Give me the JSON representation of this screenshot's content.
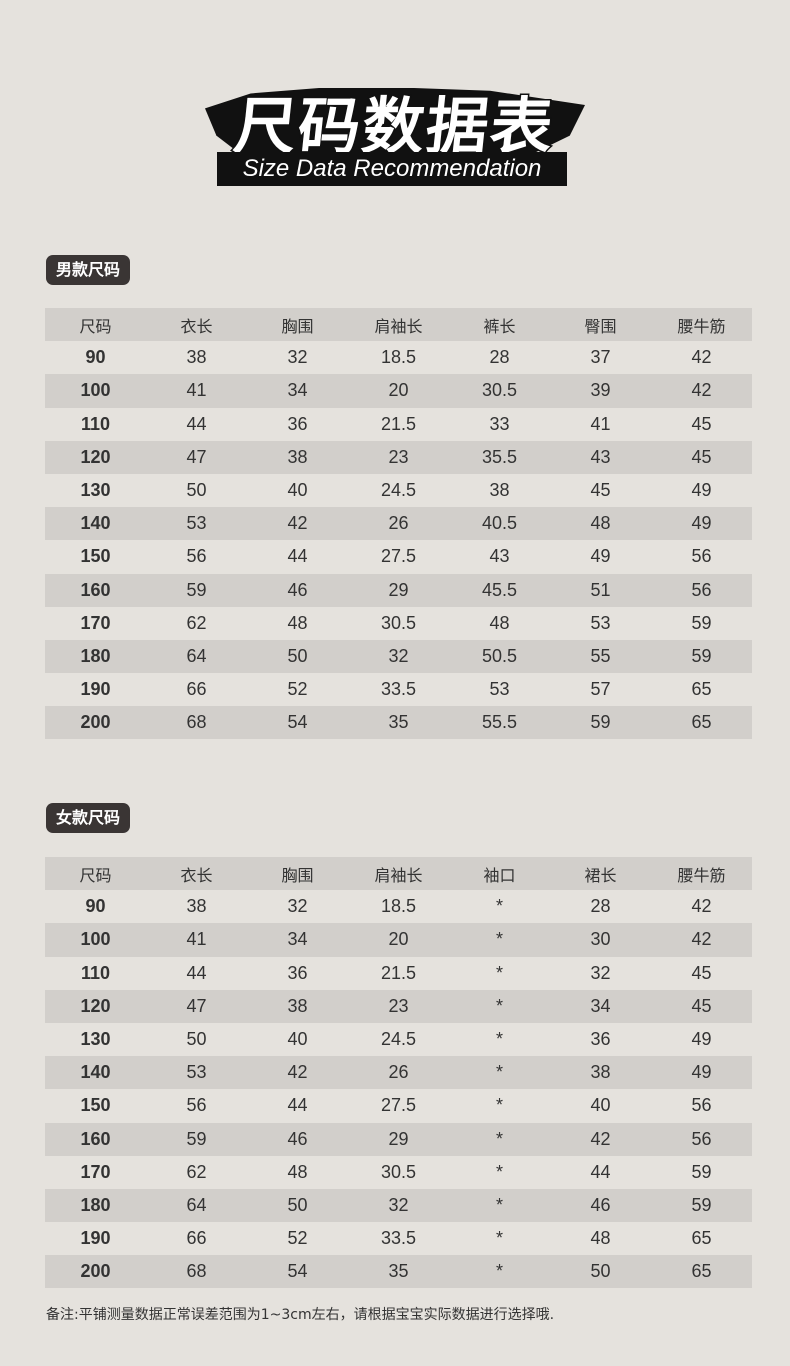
{
  "title": {
    "cn": "尺码数据表",
    "en": "Size Data Recommendation"
  },
  "men": {
    "label": "男款尺码",
    "headers": [
      "尺码",
      "衣长",
      "胸围",
      "肩袖长",
      "裤长",
      "臀围",
      "腰牛筋"
    ],
    "rows": [
      [
        "90",
        "38",
        "32",
        "18.5",
        "28",
        "37",
        "42"
      ],
      [
        "100",
        "41",
        "34",
        "20",
        "30.5",
        "39",
        "42"
      ],
      [
        "110",
        "44",
        "36",
        "21.5",
        "33",
        "41",
        "45"
      ],
      [
        "120",
        "47",
        "38",
        "23",
        "35.5",
        "43",
        "45"
      ],
      [
        "130",
        "50",
        "40",
        "24.5",
        "38",
        "45",
        "49"
      ],
      [
        "140",
        "53",
        "42",
        "26",
        "40.5",
        "48",
        "49"
      ],
      [
        "150",
        "56",
        "44",
        "27.5",
        "43",
        "49",
        "56"
      ],
      [
        "160",
        "59",
        "46",
        "29",
        "45.5",
        "51",
        "56"
      ],
      [
        "170",
        "62",
        "48",
        "30.5",
        "48",
        "53",
        "59"
      ],
      [
        "180",
        "64",
        "50",
        "32",
        "50.5",
        "55",
        "59"
      ],
      [
        "190",
        "66",
        "52",
        "33.5",
        "53",
        "57",
        "65"
      ],
      [
        "200",
        "68",
        "54",
        "35",
        "55.5",
        "59",
        "65"
      ]
    ]
  },
  "women": {
    "label": "女款尺码",
    "headers": [
      "尺码",
      "衣长",
      "胸围",
      "肩袖长",
      "袖口",
      "裙长",
      "腰牛筋"
    ],
    "rows": [
      [
        "90",
        "38",
        "32",
        "18.5",
        "*",
        "28",
        "42"
      ],
      [
        "100",
        "41",
        "34",
        "20",
        "*",
        "30",
        "42"
      ],
      [
        "110",
        "44",
        "36",
        "21.5",
        "*",
        "32",
        "45"
      ],
      [
        "120",
        "47",
        "38",
        "23",
        "*",
        "34",
        "45"
      ],
      [
        "130",
        "50",
        "40",
        "24.5",
        "*",
        "36",
        "49"
      ],
      [
        "140",
        "53",
        "42",
        "26",
        "*",
        "38",
        "49"
      ],
      [
        "150",
        "56",
        "44",
        "27.5",
        "*",
        "40",
        "56"
      ],
      [
        "160",
        "59",
        "46",
        "29",
        "*",
        "42",
        "56"
      ],
      [
        "170",
        "62",
        "48",
        "30.5",
        "*",
        "44",
        "59"
      ],
      [
        "180",
        "64",
        "50",
        "32",
        "*",
        "46",
        "59"
      ],
      [
        "190",
        "66",
        "52",
        "33.5",
        "*",
        "48",
        "65"
      ],
      [
        "200",
        "68",
        "54",
        "35",
        "*",
        "50",
        "65"
      ]
    ]
  },
  "note": "备注:平铺测量数据正常误差范围为1~3cm左右，请根据宝宝实际数据进行选择哦."
}
